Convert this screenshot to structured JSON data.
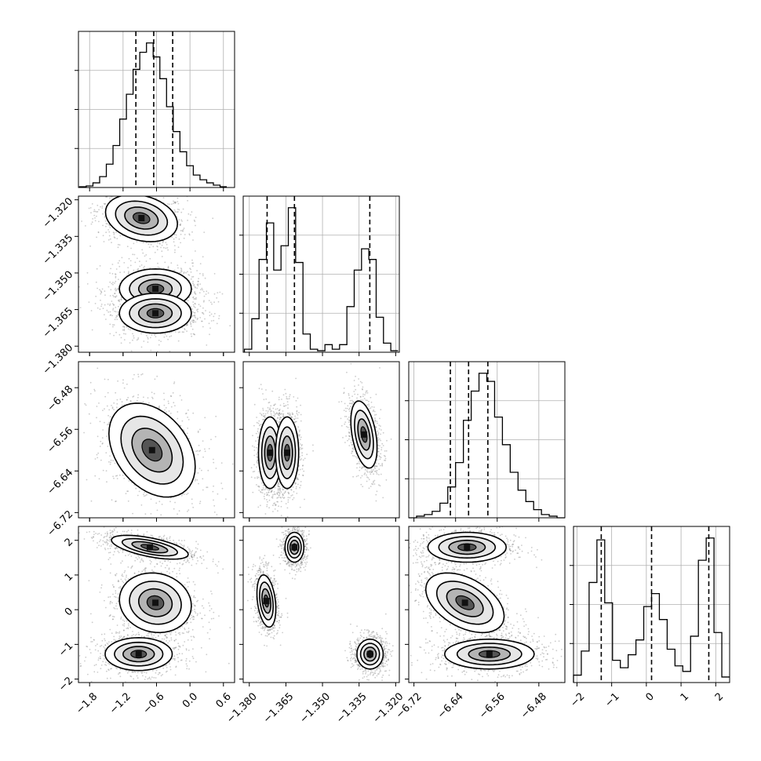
{
  "chart_data": {
    "type": "corner",
    "grid": true,
    "parameters": [
      {
        "index": 0,
        "range": [
          -2.0,
          0.8
        ],
        "ticks": [
          -1.8,
          -1.2,
          -0.6,
          0.0,
          0.6
        ],
        "tick_labels": [
          "−1.8",
          "−1.2",
          "−0.6",
          "0.0",
          "0.6"
        ],
        "quantiles": [
          -0.97,
          -0.65,
          -0.31
        ]
      },
      {
        "index": 1,
        "range": [
          -1.3825,
          -1.3185
        ],
        "ticks": [
          -1.38,
          -1.365,
          -1.35,
          -1.335,
          -1.32
        ],
        "tick_labels": [
          "−1.380",
          "−1.365",
          "−1.350",
          "−1.335",
          "−1.320"
        ],
        "quantiles": [
          -1.3727,
          -1.3615,
          -1.3306
        ]
      },
      {
        "index": 2,
        "range": [
          -6.73,
          -6.43
        ],
        "ticks": [
          -6.72,
          -6.64,
          -6.56,
          -6.48
        ],
        "tick_labels": [
          "−6.72",
          "−6.64",
          "−6.56",
          "−6.48"
        ],
        "quantiles": [
          -6.65,
          -6.615,
          -6.578
        ]
      },
      {
        "index": 3,
        "range": [
          -2.1,
          2.4
        ],
        "ticks": [
          -2,
          -1,
          0,
          1,
          2
        ],
        "tick_labels": [
          "−2",
          "−1",
          "0",
          "1",
          "2"
        ],
        "quantiles": [
          -1.3,
          0.15,
          1.8
        ]
      }
    ],
    "histograms": [
      {
        "param": 0,
        "bin_edges": [
          -1.98,
          -1.86,
          -1.74,
          -1.62,
          -1.5,
          -1.38,
          -1.26,
          -1.14,
          -1.02,
          -0.9,
          -0.78,
          -0.66,
          -0.54,
          -0.42,
          -0.3,
          -0.18,
          -0.06,
          0.06,
          0.18,
          0.3,
          0.42,
          0.54,
          0.66
        ],
        "counts": [
          0.005,
          0.01,
          0.03,
          0.07,
          0.15,
          0.27,
          0.44,
          0.6,
          0.76,
          0.87,
          0.93,
          0.84,
          0.7,
          0.52,
          0.36,
          0.23,
          0.14,
          0.08,
          0.05,
          0.03,
          0.015,
          0.005
        ]
      },
      {
        "param": 1,
        "bin_edges": [
          -1.382,
          -1.379,
          -1.376,
          -1.373,
          -1.37,
          -1.367,
          -1.364,
          -1.361,
          -1.358,
          -1.355,
          -1.352,
          -1.349,
          -1.346,
          -1.343,
          -1.34,
          -1.337,
          -1.334,
          -1.331,
          -1.328,
          -1.325,
          -1.322,
          -1.319
        ],
        "counts": [
          0.02,
          0.22,
          0.61,
          0.85,
          0.54,
          0.7,
          0.95,
          0.59,
          0.12,
          0.02,
          0.01,
          0.05,
          0.02,
          0.05,
          0.3,
          0.54,
          0.68,
          0.61,
          0.23,
          0.06,
          0.01
        ]
      },
      {
        "param": 2,
        "bin_edges": [
          -6.73,
          -6.715,
          -6.7,
          -6.685,
          -6.67,
          -6.655,
          -6.64,
          -6.625,
          -6.61,
          -6.595,
          -6.58,
          -6.565,
          -6.55,
          -6.535,
          -6.52,
          -6.505,
          -6.49,
          -6.475,
          -6.46,
          -6.445,
          -6.43
        ],
        "counts": [
          0.0,
          0.01,
          0.02,
          0.04,
          0.09,
          0.19,
          0.34,
          0.6,
          0.78,
          0.89,
          0.84,
          0.62,
          0.45,
          0.28,
          0.17,
          0.1,
          0.05,
          0.02,
          0.01,
          0.0
        ]
      },
      {
        "param": 3,
        "bin_edges": [
          -2.1,
          -1.875,
          -1.65,
          -1.425,
          -1.2,
          -0.975,
          -0.75,
          -0.525,
          -0.3,
          -0.075,
          0.15,
          0.375,
          0.6,
          0.825,
          1.05,
          1.275,
          1.5,
          1.725,
          1.95,
          2.175,
          2.4
        ],
        "counts": [
          0.04,
          0.17,
          0.54,
          0.77,
          0.43,
          0.12,
          0.08,
          0.15,
          0.23,
          0.41,
          0.48,
          0.34,
          0.18,
          0.09,
          0.06,
          0.25,
          0.66,
          0.78,
          0.27,
          0.03
        ]
      }
    ],
    "pairs": [
      {
        "x_param": 0,
        "y_param": 1,
        "modes": [
          {
            "cx": -0.87,
            "cy": -1.3275,
            "sx": 0.3,
            "sy": 0.0045,
            "rho": -0.25
          },
          {
            "cx": -0.62,
            "cy": -1.3565,
            "sx": 0.3,
            "sy": 0.0038,
            "rho": 0.0
          },
          {
            "cx": -0.62,
            "cy": -1.3665,
            "sx": 0.3,
            "sy": 0.0038,
            "rho": 0.0
          }
        ]
      },
      {
        "x_param": 0,
        "y_param": 2,
        "modes": [
          {
            "cx": -0.68,
            "cy": -6.6,
            "sx": 0.36,
            "sy": 0.042,
            "rho": -0.35
          }
        ]
      },
      {
        "x_param": 1,
        "y_param": 2,
        "modes": [
          {
            "cx": -1.3715,
            "cy": -6.605,
            "sx": 0.0022,
            "sy": 0.032,
            "rho": 0.0
          },
          {
            "cx": -1.3645,
            "cy": -6.605,
            "sx": 0.0022,
            "sy": 0.032,
            "rho": 0.0
          },
          {
            "cx": -1.333,
            "cy": -6.57,
            "sx": 0.0025,
            "sy": 0.03,
            "rho": -0.4
          }
        ]
      },
      {
        "x_param": 0,
        "y_param": 3,
        "modes": [
          {
            "cx": -0.72,
            "cy": 1.8,
            "sx": 0.32,
            "sy": 0.16,
            "rho": -0.6
          },
          {
            "cx": -0.62,
            "cy": 0.2,
            "sx": 0.3,
            "sy": 0.4,
            "rho": -0.1
          },
          {
            "cx": -0.92,
            "cy": -1.28,
            "sx": 0.28,
            "sy": 0.22,
            "rho": 0.0
          }
        ]
      },
      {
        "x_param": 1,
        "y_param": 3,
        "modes": [
          {
            "cx": -1.3615,
            "cy": 1.8,
            "sx": 0.0018,
            "sy": 0.2,
            "rho": 0.0
          },
          {
            "cx": -1.373,
            "cy": 0.25,
            "sx": 0.0018,
            "sy": 0.35,
            "rho": -0.3
          },
          {
            "cx": -1.3305,
            "cy": -1.28,
            "sx": 0.0025,
            "sy": 0.2,
            "rho": 0.0
          }
        ]
      },
      {
        "x_param": 2,
        "y_param": 3,
        "modes": [
          {
            "cx": -6.618,
            "cy": 1.8,
            "sx": 0.035,
            "sy": 0.2,
            "rho": 0.0
          },
          {
            "cx": -6.622,
            "cy": 0.2,
            "sx": 0.035,
            "sy": 0.4,
            "rho": -0.45
          },
          {
            "cx": -6.575,
            "cy": -1.28,
            "sx": 0.04,
            "sy": 0.2,
            "rho": 0.0
          }
        ]
      }
    ],
    "colors": {
      "line": "#000000",
      "grid": "#b0b0b0",
      "points": "#6e6e6e"
    }
  }
}
